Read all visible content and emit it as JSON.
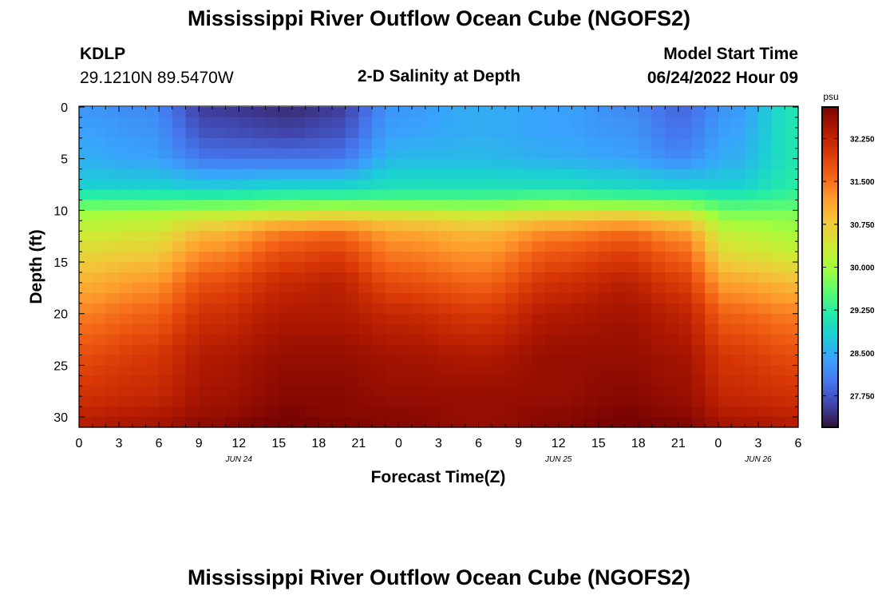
{
  "page": {
    "title": "Mississippi River Outflow Ocean Cube (NGOFS2)",
    "title_repeat": "Mississippi River Outflow Ocean Cube (NGOFS2)",
    "station_id": "KDLP",
    "station_coords": "29.1210N  89.5470W",
    "subtitle": "2-D Salinity at Depth",
    "model_start_label": "Model Start Time",
    "model_start_value": "06/24/2022 Hour 09"
  },
  "chart_data": {
    "type": "heatmap",
    "xlabel": "Forecast Time(Z)",
    "ylabel": "Depth (ft)",
    "x_tick_labels": [
      "0",
      "3",
      "6",
      "9",
      "12",
      "15",
      "18",
      "21",
      "0",
      "3",
      "6",
      "9",
      "12",
      "15",
      "18",
      "21",
      "0",
      "3",
      "6"
    ],
    "date_labels": [
      {
        "label": "JUN 24",
        "hour_index": 12
      },
      {
        "label": "JUN 25",
        "hour_index": 36
      },
      {
        "label": "JUN 26",
        "hour_index": 51
      }
    ],
    "hours_range": [
      0,
      54
    ],
    "y_ticks": [
      0,
      5,
      10,
      15,
      20,
      25,
      30
    ],
    "ylim": [
      0,
      31
    ],
    "colorbar": {
      "unit": "psu",
      "ticks": [
        "27.750",
        "28.500",
        "29.250",
        "30.000",
        "30.750",
        "31.500",
        "32.250"
      ],
      "range": [
        27.2,
        32.8
      ],
      "colors": [
        "#30123b",
        "#4145ab",
        "#4675ed",
        "#39a2fc",
        "#1bcfd4",
        "#24eca6",
        "#61fc6c",
        "#a4fc3b",
        "#d1e834",
        "#f3c63a",
        "#fe9b2d",
        "#f36315",
        "#d93806",
        "#b11901",
        "#7a0402"
      ]
    },
    "depth_levels_ft": [
      0,
      2.5,
      5,
      7.5,
      9,
      10.5,
      12,
      14,
      17,
      20,
      24,
      28,
      30,
      31
    ],
    "profile_times_h": [
      0,
      5,
      10,
      16,
      19,
      24,
      30,
      36,
      41,
      45,
      49,
      54
    ],
    "salinity_profiles": [
      [
        28.3,
        28.4,
        28.5,
        28.8,
        29.4,
        30.0,
        30.3,
        30.6,
        31.0,
        31.4,
        31.8,
        32.1,
        32.3,
        32.4
      ],
      [
        28.2,
        28.3,
        28.4,
        28.8,
        29.4,
        30.1,
        30.4,
        30.7,
        31.2,
        31.6,
        32.0,
        32.2,
        32.4,
        32.5
      ],
      [
        27.5,
        27.7,
        28.0,
        28.7,
        29.4,
        30.3,
        30.9,
        31.3,
        31.8,
        32.1,
        32.4,
        32.5,
        32.6,
        32.7
      ],
      [
        27.4,
        27.6,
        28.0,
        28.8,
        29.5,
        30.5,
        31.4,
        31.8,
        32.2,
        32.4,
        32.6,
        32.7,
        32.8,
        32.9
      ],
      [
        27.5,
        27.7,
        28.0,
        28.8,
        29.5,
        30.6,
        31.5,
        31.9,
        32.3,
        32.4,
        32.6,
        32.7,
        32.7,
        32.8
      ],
      [
        28.3,
        28.4,
        28.6,
        29.0,
        29.5,
        30.5,
        31.1,
        31.4,
        31.8,
        32.2,
        32.5,
        32.6,
        32.7,
        32.7
      ],
      [
        28.5,
        28.5,
        28.6,
        29.0,
        29.5,
        30.4,
        30.9,
        31.2,
        31.6,
        32.0,
        32.4,
        32.6,
        32.6,
        32.6
      ],
      [
        28.4,
        28.4,
        28.5,
        29.0,
        29.6,
        30.6,
        31.3,
        31.7,
        32.1,
        32.4,
        32.6,
        32.6,
        32.7,
        32.7
      ],
      [
        28.2,
        28.3,
        28.4,
        28.9,
        29.5,
        30.7,
        31.5,
        31.9,
        32.3,
        32.5,
        32.6,
        32.7,
        32.8,
        32.9
      ],
      [
        27.9,
        28.0,
        28.2,
        28.8,
        29.5,
        30.5,
        31.2,
        31.6,
        32.0,
        32.3,
        32.5,
        32.6,
        32.7,
        32.8
      ],
      [
        28.3,
        28.4,
        28.5,
        28.8,
        29.3,
        29.8,
        30.2,
        30.5,
        31.1,
        31.6,
        32.0,
        32.2,
        32.4,
        32.5
      ],
      [
        29.1,
        29.1,
        29.1,
        29.2,
        29.4,
        29.8,
        30.0,
        30.3,
        30.9,
        31.4,
        31.8,
        32.1,
        32.3,
        32.4
      ]
    ]
  }
}
